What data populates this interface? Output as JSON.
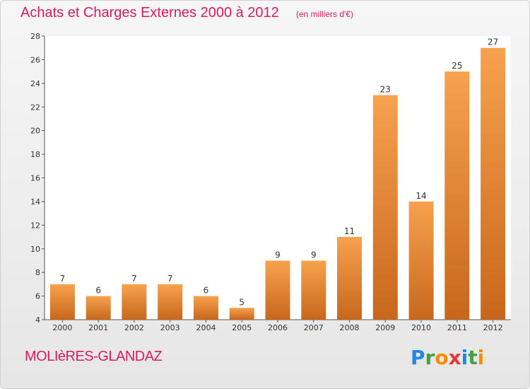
{
  "title": "Achats et Charges Externes 2000 à 2012",
  "subtitle": "(en milliers d'€)",
  "city": "MOLIèRES-GLANDAZ",
  "logo": {
    "text": "Proxiti",
    "letters": [
      {
        "char": "P",
        "color": "#1e88e5"
      },
      {
        "char": "r",
        "color": "#43a047"
      },
      {
        "char": "o",
        "color": "#fb8c00"
      },
      {
        "char": "x",
        "color": "#e53935"
      },
      {
        "char": "i",
        "color": "#1e88e5"
      },
      {
        "char": "t",
        "color": "#43a047"
      },
      {
        "char": "i",
        "color": "#fb8c00"
      }
    ]
  },
  "colors": {
    "title": "#d81b60",
    "bar_top": "#f6a24e",
    "bar_bottom": "#c8671c"
  },
  "chart_data": {
    "type": "bar",
    "title": "Achats et Charges Externes 2000 à 2012",
    "subtitle": "(en milliers d'€)",
    "categories": [
      "2000",
      "2001",
      "2002",
      "2003",
      "2004",
      "2005",
      "2006",
      "2007",
      "2008",
      "2009",
      "2010",
      "2011",
      "2012"
    ],
    "values": [
      7,
      6,
      7,
      7,
      6,
      5,
      9,
      9,
      11,
      23,
      14,
      25,
      27
    ],
    "ylim": [
      4,
      28
    ],
    "yticks": [
      4,
      6,
      8,
      10,
      12,
      14,
      16,
      18,
      20,
      22,
      24,
      26,
      28
    ],
    "grid": false,
    "xlabel": "",
    "ylabel": ""
  }
}
